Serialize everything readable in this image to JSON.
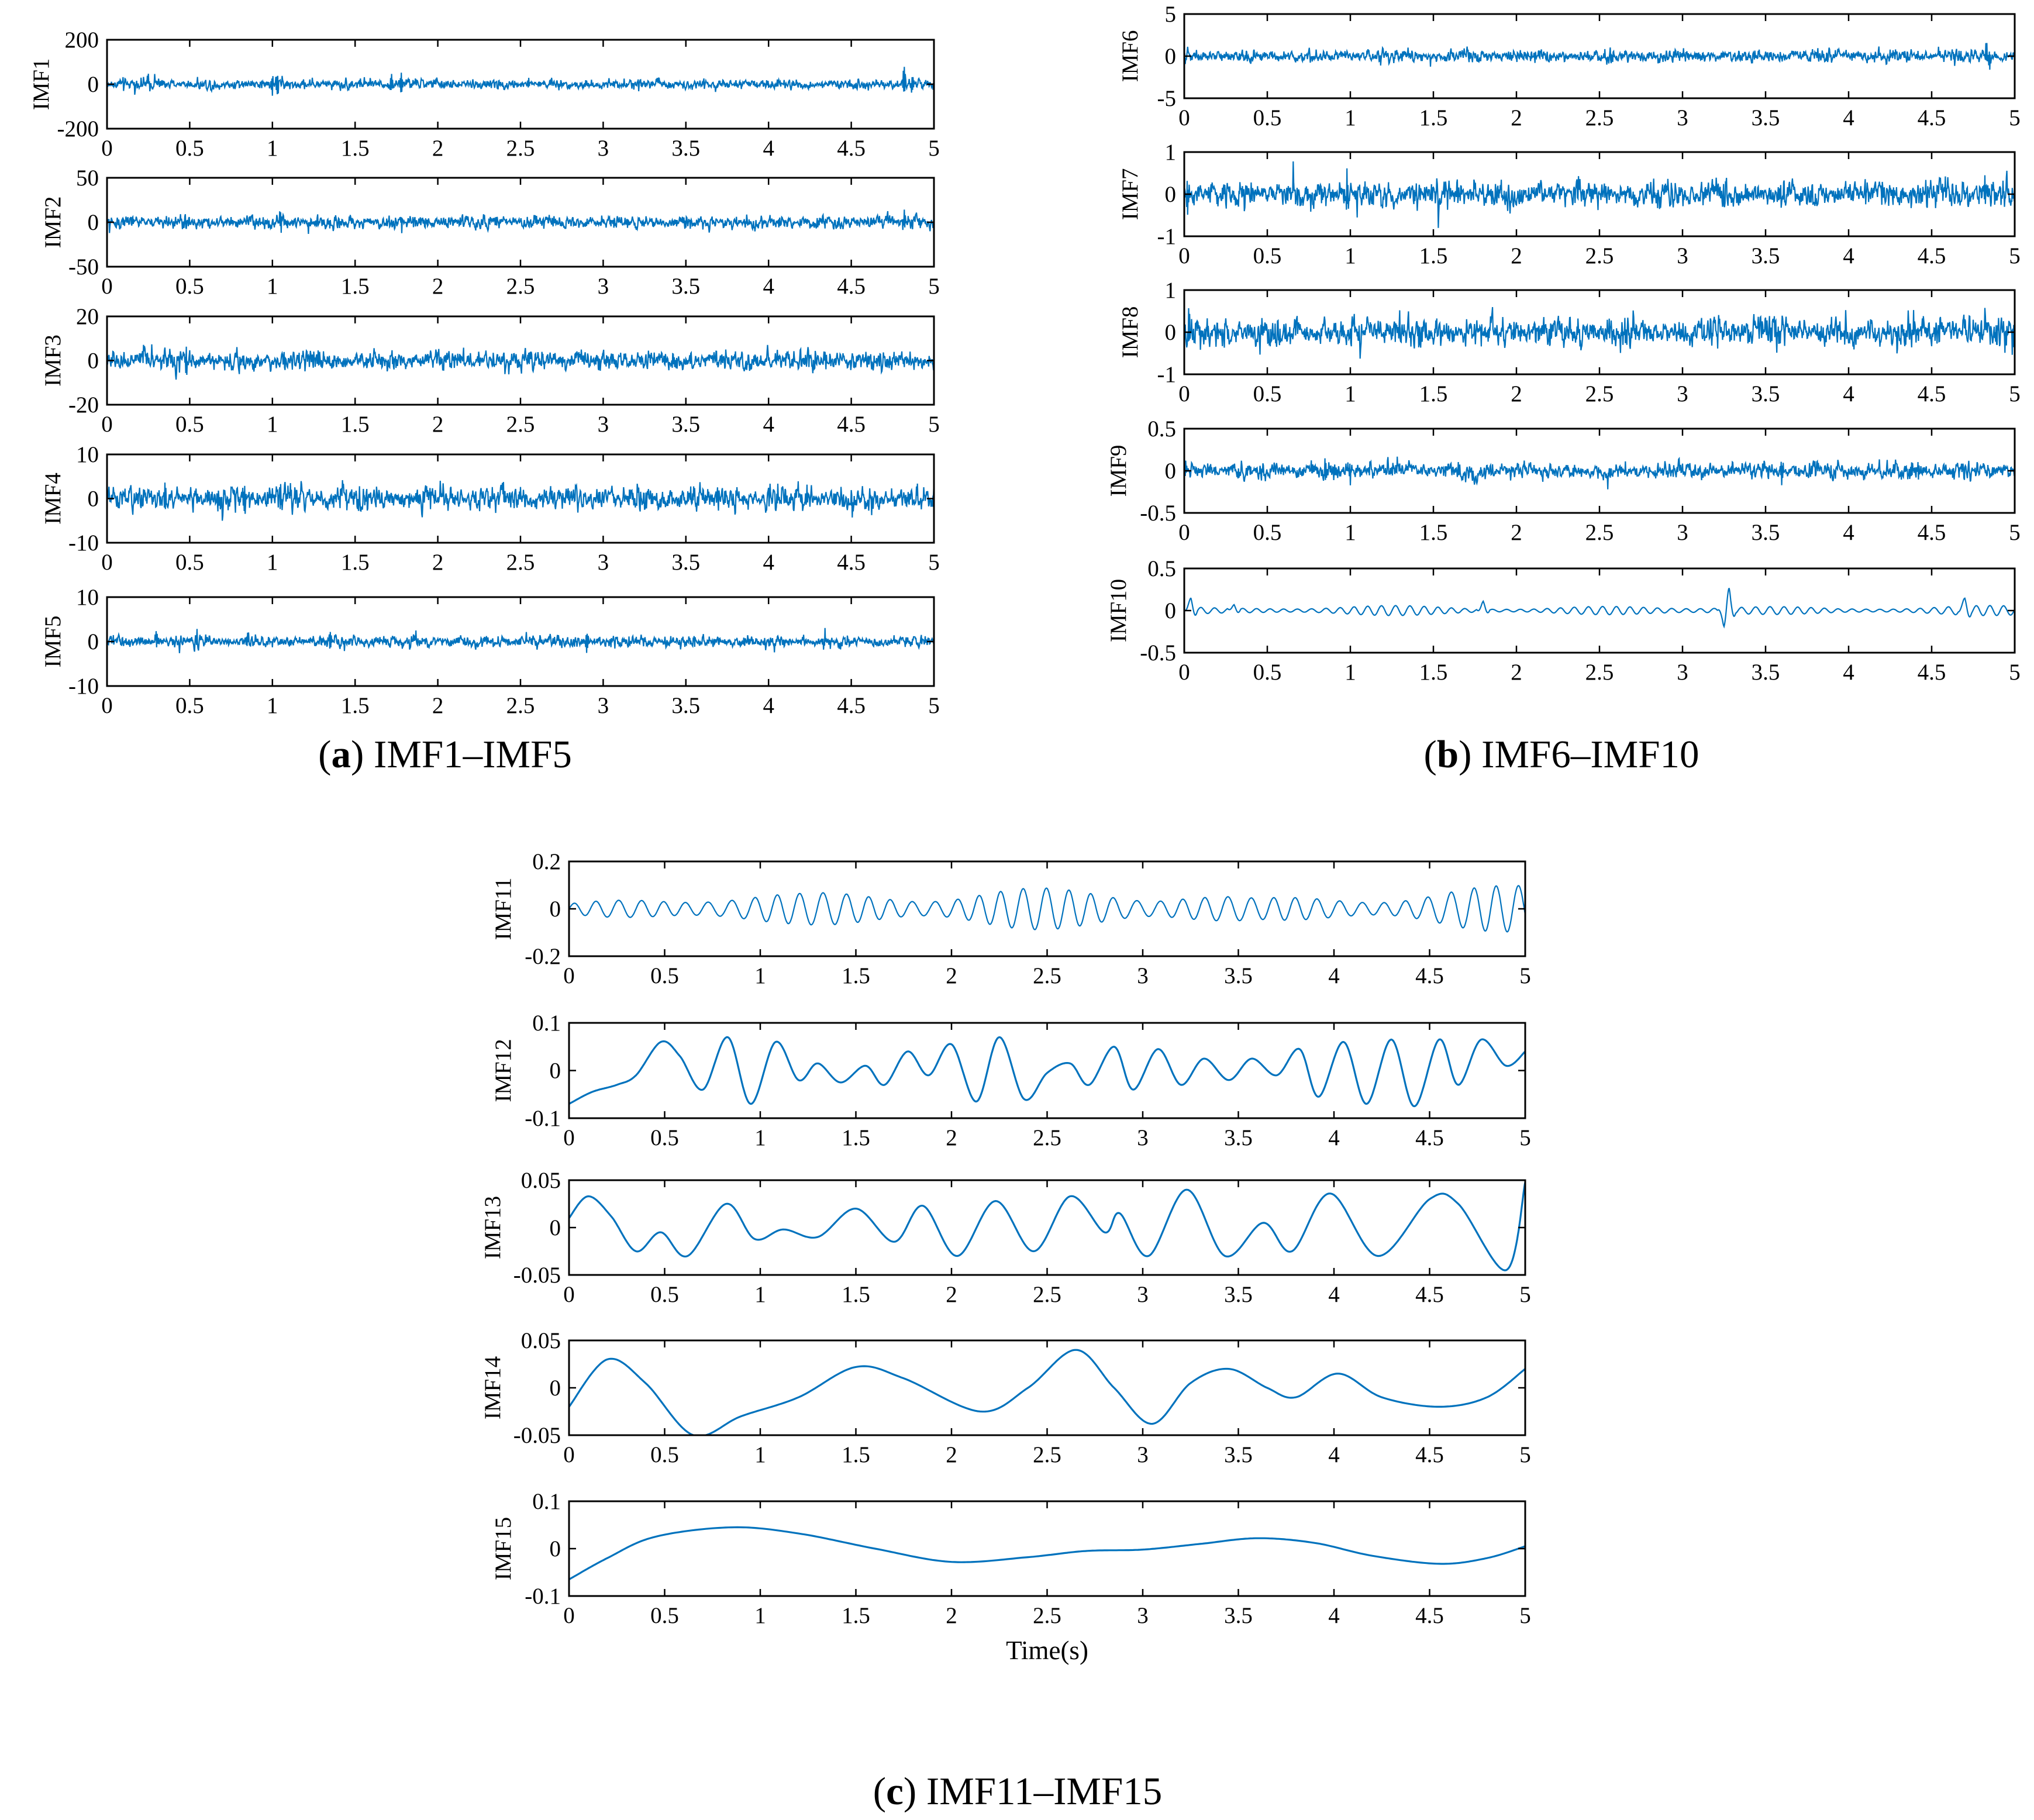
{
  "figure": {
    "captions": [
      {
        "letter": "a",
        "text": "IMF1–IMF5"
      },
      {
        "letter": "b",
        "text": "IMF6–IMF10"
      },
      {
        "letter": "c",
        "text": "IMF11–IMF15"
      }
    ],
    "series_color": "#0072BD"
  },
  "chart_data": [
    {
      "type": "line",
      "panel": "a",
      "ylabel": "IMF1",
      "xlim": [
        0,
        5
      ],
      "ylim": [
        -200,
        200
      ],
      "yticks": [
        "200",
        "0",
        "-200"
      ],
      "xticks": [
        "0",
        "0.5",
        "1",
        "1.5",
        "2",
        "2.5",
        "3",
        "3.5",
        "4",
        "4.5",
        "5"
      ],
      "xlabel": "",
      "signal": {
        "kind": "noise",
        "amplitude": 28,
        "bursts": [
          {
            "t": 1.03,
            "a": 125
          },
          {
            "t": 1.0,
            "a": 95
          },
          {
            "t": 1.78,
            "a": 118
          },
          {
            "t": 1.72,
            "a": 80
          },
          {
            "t": 4.82,
            "a": 145
          },
          {
            "t": 4.87,
            "a": 110
          },
          {
            "t": 2.55,
            "a": 55
          },
          {
            "t": 0.25,
            "a": 50
          }
        ]
      }
    },
    {
      "type": "line",
      "panel": "a",
      "ylabel": "IMF2",
      "xlim": [
        0,
        5
      ],
      "ylim": [
        -50,
        50
      ],
      "yticks": [
        "50",
        "0",
        "-50"
      ],
      "xticks": [
        "0",
        "0.5",
        "1",
        "1.5",
        "2",
        "2.5",
        "3",
        "3.5",
        "4",
        "4.5",
        "5"
      ],
      "xlabel": "",
      "signal": {
        "kind": "noise",
        "amplitude": 9,
        "bursts": [
          {
            "t": 1.05,
            "a": 25
          },
          {
            "t": 4.82,
            "a": 25
          },
          {
            "t": 1.78,
            "a": 18
          }
        ]
      }
    },
    {
      "type": "line",
      "panel": "a",
      "ylabel": "IMF3",
      "xlim": [
        0,
        5
      ],
      "ylim": [
        -20,
        20
      ],
      "yticks": [
        "20",
        "0",
        "-20"
      ],
      "xticks": [
        "0",
        "0.5",
        "1",
        "1.5",
        "2",
        "2.5",
        "3",
        "3.5",
        "4",
        "4.5",
        "5"
      ],
      "xlabel": "",
      "signal": {
        "kind": "noise",
        "amplitude": 5.5,
        "bursts": [
          {
            "t": 0.48,
            "a": 11
          },
          {
            "t": 2.55,
            "a": 10
          }
        ]
      }
    },
    {
      "type": "line",
      "panel": "a",
      "ylabel": "IMF4",
      "xlim": [
        0,
        5
      ],
      "ylim": [
        -10,
        10
      ],
      "yticks": [
        "10",
        "0",
        "-10"
      ],
      "xticks": [
        "0",
        "0.5",
        "1",
        "1.5",
        "2",
        "2.5",
        "3",
        "3.5",
        "4",
        "4.5",
        "5"
      ],
      "xlabel": "",
      "signal": {
        "kind": "noise",
        "amplitude": 3.3,
        "bursts": [
          {
            "t": 0.35,
            "a": 6.5
          },
          {
            "t": 0.83,
            "a": 6.5
          },
          {
            "t": 1.05,
            "a": 6
          }
        ]
      }
    },
    {
      "type": "line",
      "panel": "a",
      "ylabel": "IMF5",
      "xlim": [
        0,
        5
      ],
      "ylim": [
        -10,
        10
      ],
      "yticks": [
        "10",
        "0",
        "-10"
      ],
      "xticks": [
        "0",
        "0.5",
        "1",
        "1.5",
        "2",
        "2.5",
        "3",
        "3.5",
        "4",
        "4.5",
        "5"
      ],
      "xlabel": "",
      "signal": {
        "kind": "noise",
        "amplitude": 1.6,
        "bursts": [
          {
            "t": 1.35,
            "a": 5
          },
          {
            "t": 2.9,
            "a": 5.5
          },
          {
            "t": 0.85,
            "a": 4
          },
          {
            "t": 0.3,
            "a": 4
          }
        ]
      }
    },
    {
      "type": "line",
      "panel": "b",
      "ylabel": "IMF6",
      "xlim": [
        0,
        5
      ],
      "ylim": [
        -5,
        5
      ],
      "yticks": [
        "5",
        "0",
        "-5"
      ],
      "xticks": [
        "0",
        "0.5",
        "1",
        "1.5",
        "2",
        "2.5",
        "3",
        "3.5",
        "4",
        "4.5",
        "5"
      ],
      "xlabel": "",
      "signal": {
        "kind": "noise",
        "amplitude": 0.9,
        "bursts": [
          {
            "t": 4.83,
            "a": 3
          },
          {
            "t": 4.85,
            "a": -2.5
          }
        ]
      }
    },
    {
      "type": "line",
      "panel": "b",
      "ylabel": "IMF7",
      "xlim": [
        0,
        5
      ],
      "ylim": [
        -1,
        1
      ],
      "yticks": [
        "1",
        "0",
        "-1"
      ],
      "xticks": [
        "0",
        "0.5",
        "1",
        "1.5",
        "2",
        "2.5",
        "3",
        "3.5",
        "4",
        "4.5",
        "5"
      ],
      "xlabel": "",
      "signal": {
        "kind": "noise",
        "amplitude": 0.38,
        "bursts": [
          {
            "t": 0.98,
            "a": 0.8
          },
          {
            "t": 4.82,
            "a": 0.8
          },
          {
            "t": 0.02,
            "a": -0.9
          }
        ]
      }
    },
    {
      "type": "line",
      "panel": "b",
      "ylabel": "IMF8",
      "xlim": [
        0,
        5
      ],
      "ylim": [
        -1,
        1
      ],
      "yticks": [
        "1",
        "0",
        "-1"
      ],
      "xticks": [
        "0",
        "0.5",
        "1",
        "1.5",
        "2",
        "2.5",
        "3",
        "3.5",
        "4",
        "4.5",
        "5"
      ],
      "xlabel": "",
      "signal": {
        "kind": "noise",
        "amplitude": 0.42,
        "bursts": [
          {
            "t": 0.03,
            "a": 0.75
          },
          {
            "t": 4.99,
            "a": -0.8
          }
        ]
      }
    },
    {
      "type": "line",
      "panel": "b",
      "ylabel": "IMF9",
      "xlim": [
        0,
        5
      ],
      "ylim": [
        -0.5,
        0.5
      ],
      "yticks": [
        "0.5",
        "0",
        "-0.5"
      ],
      "xticks": [
        "0",
        "0.5",
        "1",
        "1.5",
        "2",
        "2.5",
        "3",
        "3.5",
        "4",
        "4.5",
        "5"
      ],
      "xlabel": "",
      "signal": {
        "kind": "noise",
        "amplitude": 0.12,
        "bursts": [
          {
            "t": 0.85,
            "a": -0.28
          },
          {
            "t": 1.0,
            "a": 0.27
          },
          {
            "t": 4.38,
            "a": 0.3
          },
          {
            "t": 4.42,
            "a": -0.25
          },
          {
            "t": 3.6,
            "a": -0.26
          }
        ]
      }
    },
    {
      "type": "line",
      "panel": "b",
      "ylabel": "IMF10",
      "xlim": [
        0,
        5
      ],
      "ylim": [
        -0.5,
        0.5
      ],
      "yticks": [
        "0.5",
        "0",
        "-0.5"
      ],
      "xticks": [
        "0",
        "0.5",
        "1",
        "1.5",
        "2",
        "2.5",
        "3",
        "3.5",
        "4",
        "4.5",
        "5"
      ],
      "xlabel": "",
      "signal": {
        "kind": "oscillation",
        "amplitude": 0.045,
        "freq": 12,
        "bursts": [
          {
            "t": 0.04,
            "a": 0.15
          },
          {
            "t": 1.8,
            "a": 0.12
          },
          {
            "t": 3.28,
            "a": 0.22
          },
          {
            "t": 3.25,
            "a": -0.15
          },
          {
            "t": 4.7,
            "a": 0.12
          },
          {
            "t": 0.3,
            "a": 0.09
          }
        ]
      }
    },
    {
      "type": "line",
      "panel": "c",
      "ylabel": "IMF11",
      "xlim": [
        0,
        5
      ],
      "ylim": [
        -0.2,
        0.2
      ],
      "yticks": [
        "0.2",
        "0",
        "-0.2"
      ],
      "xticks": [
        "0",
        "0.5",
        "1",
        "1.5",
        "2",
        "2.5",
        "3",
        "3.5",
        "4",
        "4.5",
        "5"
      ],
      "xlabel": "",
      "signal": {
        "kind": "oscillation",
        "amplitude": 0.05,
        "freq": 8.5,
        "envelope": [
          [
            0,
            0.02
          ],
          [
            0.3,
            0.04
          ],
          [
            0.7,
            0.07
          ],
          [
            1.2,
            0.06
          ],
          [
            2.2,
            0.08
          ],
          [
            3.2,
            0.08
          ],
          [
            3.6,
            0.04
          ],
          [
            4.9,
            0.09
          ],
          [
            5,
            0.1
          ]
        ],
        "bursts": []
      }
    },
    {
      "type": "line",
      "panel": "c",
      "ylabel": "IMF12",
      "xlim": [
        0,
        5
      ],
      "ylim": [
        -0.1,
        0.1
      ],
      "yticks": [
        "0.1",
        "0",
        "-0.1"
      ],
      "xticks": [
        "0",
        "0.5",
        "1",
        "1.5",
        "2",
        "2.5",
        "3",
        "3.5",
        "4",
        "4.5",
        "5"
      ],
      "xlabel": "",
      "points": [
        [
          0,
          -0.07
        ],
        [
          0.12,
          -0.045
        ],
        [
          0.25,
          -0.03
        ],
        [
          0.35,
          -0.01
        ],
        [
          0.48,
          0.06
        ],
        [
          0.58,
          0.03
        ],
        [
          0.7,
          -0.04
        ],
        [
          0.83,
          0.07
        ],
        [
          0.95,
          -0.07
        ],
        [
          1.08,
          0.06
        ],
        [
          1.2,
          -0.02
        ],
        [
          1.3,
          0.015
        ],
        [
          1.42,
          -0.025
        ],
        [
          1.55,
          0.01
        ],
        [
          1.65,
          -0.03
        ],
        [
          1.77,
          0.04
        ],
        [
          1.88,
          -0.01
        ],
        [
          2.0,
          0.055
        ],
        [
          2.13,
          -0.065
        ],
        [
          2.25,
          0.07
        ],
        [
          2.38,
          -0.06
        ],
        [
          2.5,
          -0.005
        ],
        [
          2.62,
          0.015
        ],
        [
          2.72,
          -0.03
        ],
        [
          2.85,
          0.05
        ],
        [
          2.95,
          -0.04
        ],
        [
          3.08,
          0.045
        ],
        [
          3.2,
          -0.03
        ],
        [
          3.32,
          0.025
        ],
        [
          3.45,
          -0.02
        ],
        [
          3.57,
          0.025
        ],
        [
          3.7,
          -0.01
        ],
        [
          3.82,
          0.045
        ],
        [
          3.92,
          -0.055
        ],
        [
          4.05,
          0.06
        ],
        [
          4.17,
          -0.07
        ],
        [
          4.3,
          0.065
        ],
        [
          4.42,
          -0.075
        ],
        [
          4.55,
          0.065
        ],
        [
          4.65,
          -0.03
        ],
        [
          4.77,
          0.065
        ],
        [
          4.9,
          0.01
        ],
        [
          5.0,
          0.04
        ]
      ]
    },
    {
      "type": "line",
      "panel": "c",
      "ylabel": "IMF13",
      "xlim": [
        0,
        5
      ],
      "ylim": [
        -0.05,
        0.05
      ],
      "yticks": [
        "0.05",
        "0",
        "-0.05"
      ],
      "xticks": [
        "0",
        "0.5",
        "1",
        "1.5",
        "2",
        "2.5",
        "3",
        "3.5",
        "4",
        "4.5",
        "5"
      ],
      "xlabel": "",
      "points": [
        [
          0,
          0.01
        ],
        [
          0.1,
          0.033
        ],
        [
          0.22,
          0.012
        ],
        [
          0.35,
          -0.025
        ],
        [
          0.48,
          -0.005
        ],
        [
          0.62,
          -0.03
        ],
        [
          0.82,
          0.025
        ],
        [
          0.97,
          -0.012
        ],
        [
          1.12,
          -0.002
        ],
        [
          1.3,
          -0.01
        ],
        [
          1.5,
          0.02
        ],
        [
          1.7,
          -0.015
        ],
        [
          1.85,
          0.023
        ],
        [
          2.03,
          -0.03
        ],
        [
          2.23,
          0.028
        ],
        [
          2.43,
          -0.025
        ],
        [
          2.62,
          0.033
        ],
        [
          2.8,
          -0.005
        ],
        [
          2.88,
          0.015
        ],
        [
          3.03,
          -0.03
        ],
        [
          3.23,
          0.04
        ],
        [
          3.43,
          -0.03
        ],
        [
          3.63,
          0.005
        ],
        [
          3.78,
          -0.025
        ],
        [
          3.98,
          0.036
        ],
        [
          4.23,
          -0.03
        ],
        [
          4.5,
          0.03
        ],
        [
          4.65,
          0.025
        ],
        [
          4.9,
          -0.045
        ],
        [
          5.0,
          0.048
        ]
      ]
    },
    {
      "type": "line",
      "panel": "c",
      "ylabel": "IMF14",
      "xlim": [
        0,
        5
      ],
      "ylim": [
        -0.05,
        0.05
      ],
      "yticks": [
        "0.05",
        "0",
        "-0.05"
      ],
      "xticks": [
        "0",
        "0.5",
        "1",
        "1.5",
        "2",
        "2.5",
        "3",
        "3.5",
        "4",
        "4.5",
        "5"
      ],
      "xlabel": "",
      "points": [
        [
          0,
          -0.02
        ],
        [
          0.2,
          0.03
        ],
        [
          0.4,
          0.005
        ],
        [
          0.65,
          -0.05
        ],
        [
          0.9,
          -0.03
        ],
        [
          1.2,
          -0.01
        ],
        [
          1.5,
          0.022
        ],
        [
          1.75,
          0.01
        ],
        [
          2.15,
          -0.025
        ],
        [
          2.4,
          0.0
        ],
        [
          2.65,
          0.04
        ],
        [
          2.85,
          0.0
        ],
        [
          3.05,
          -0.038
        ],
        [
          3.25,
          0.005
        ],
        [
          3.45,
          0.02
        ],
        [
          3.65,
          0.0
        ],
        [
          3.8,
          -0.01
        ],
        [
          4.02,
          0.015
        ],
        [
          4.25,
          -0.01
        ],
        [
          4.55,
          -0.02
        ],
        [
          4.8,
          -0.01
        ],
        [
          5.0,
          0.02
        ]
      ]
    },
    {
      "type": "line",
      "panel": "c",
      "ylabel": "IMF15",
      "xlim": [
        0,
        5
      ],
      "ylim": [
        -0.1,
        0.1
      ],
      "yticks": [
        "0.1",
        "0",
        "-0.1"
      ],
      "xticks": [
        "0",
        "0.5",
        "1",
        "1.5",
        "2",
        "2.5",
        "3",
        "3.5",
        "4",
        "4.5",
        "5"
      ],
      "xlabel": "Time(s)",
      "points": [
        [
          0,
          -0.065
        ],
        [
          0.2,
          -0.02
        ],
        [
          0.45,
          0.025
        ],
        [
          0.85,
          0.045
        ],
        [
          1.2,
          0.032
        ],
        [
          1.6,
          0.0
        ],
        [
          2.0,
          -0.028
        ],
        [
          2.4,
          -0.018
        ],
        [
          2.7,
          -0.005
        ],
        [
          3.0,
          -0.002
        ],
        [
          3.3,
          0.01
        ],
        [
          3.6,
          0.022
        ],
        [
          3.9,
          0.012
        ],
        [
          4.2,
          -0.015
        ],
        [
          4.55,
          -0.032
        ],
        [
          4.8,
          -0.02
        ],
        [
          5.0,
          0.005
        ]
      ]
    }
  ]
}
